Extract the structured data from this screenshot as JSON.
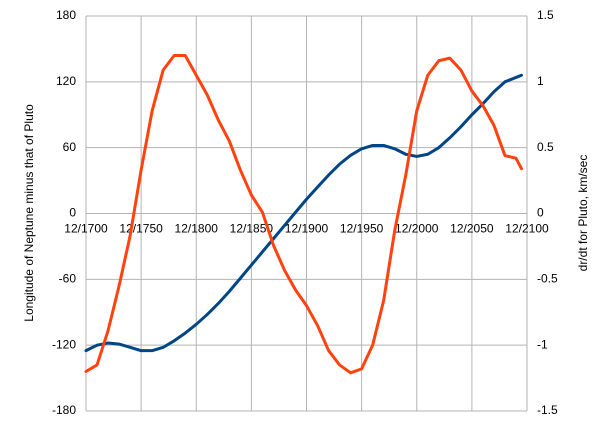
{
  "chart_data": {
    "type": "line",
    "y_label": "Longitude of Neptune minus that of Pluto",
    "y2_label": "dr/dt for Pluto, km/sec",
    "x": [
      1700,
      1710,
      1720,
      1730,
      1740,
      1750,
      1760,
      1770,
      1780,
      1790,
      1800,
      1810,
      1820,
      1830,
      1840,
      1850,
      1860,
      1870,
      1880,
      1890,
      1900,
      1910,
      1920,
      1930,
      1940,
      1950,
      1960,
      1970,
      1980,
      1990,
      2000,
      2010,
      2020,
      2030,
      2040,
      2050,
      2060,
      2070,
      2080,
      2090,
      2095
    ],
    "series": [
      {
        "color": "#004586",
        "values": [
          -125,
          -120,
          -118,
          -119,
          -122,
          -125,
          -125,
          -122,
          -116,
          -109,
          -101,
          -92,
          -82,
          -71,
          -59,
          -47,
          -35,
          -23,
          -11,
          1,
          13,
          24,
          35,
          45,
          53,
          59,
          62,
          62,
          59,
          54,
          52,
          54,
          60,
          69,
          79,
          90,
          100,
          111,
          120,
          124,
          126
        ]
      },
      {
        "color": "#ff420e",
        "axis": "y2",
        "values": [
          -1.2,
          -1.15,
          -0.89,
          -0.55,
          -0.17,
          0.33,
          0.78,
          1.09,
          1.2,
          1.2,
          1.05,
          0.9,
          0.71,
          0.55,
          0.33,
          0.14,
          0.01,
          -0.24,
          -0.43,
          -0.58,
          -0.7,
          -0.85,
          -1.04,
          -1.15,
          -1.21,
          -1.18,
          -1.0,
          -0.66,
          -0.13,
          0.29,
          0.78,
          1.05,
          1.16,
          1.18,
          1.09,
          0.93,
          0.82,
          0.67,
          0.44,
          0.42,
          0.34
        ]
      }
    ],
    "xlim": [
      1700,
      2100
    ],
    "xticks": [
      {
        "value": 1700,
        "label": "12/1700"
      },
      {
        "value": 1750,
        "label": "12/1750"
      },
      {
        "value": 1800,
        "label": "12/1800"
      },
      {
        "value": 1850,
        "label": "12/1850"
      },
      {
        "value": 1900,
        "label": "12/1900"
      },
      {
        "value": 1950,
        "label": "12/1950"
      },
      {
        "value": 2000,
        "label": "12/2000"
      },
      {
        "value": 2050,
        "label": "12/2050"
      },
      {
        "value": 2100,
        "label": "12/2100"
      }
    ],
    "ylim": [
      -180,
      180
    ],
    "yticks": [
      180,
      120,
      60,
      0,
      -60,
      -120,
      -180
    ],
    "y2lim": [
      -1.5,
      1.5
    ],
    "y2ticks": [
      1.5,
      1,
      0.5,
      0,
      -0.5,
      -1,
      -1.5
    ],
    "grid": true
  }
}
